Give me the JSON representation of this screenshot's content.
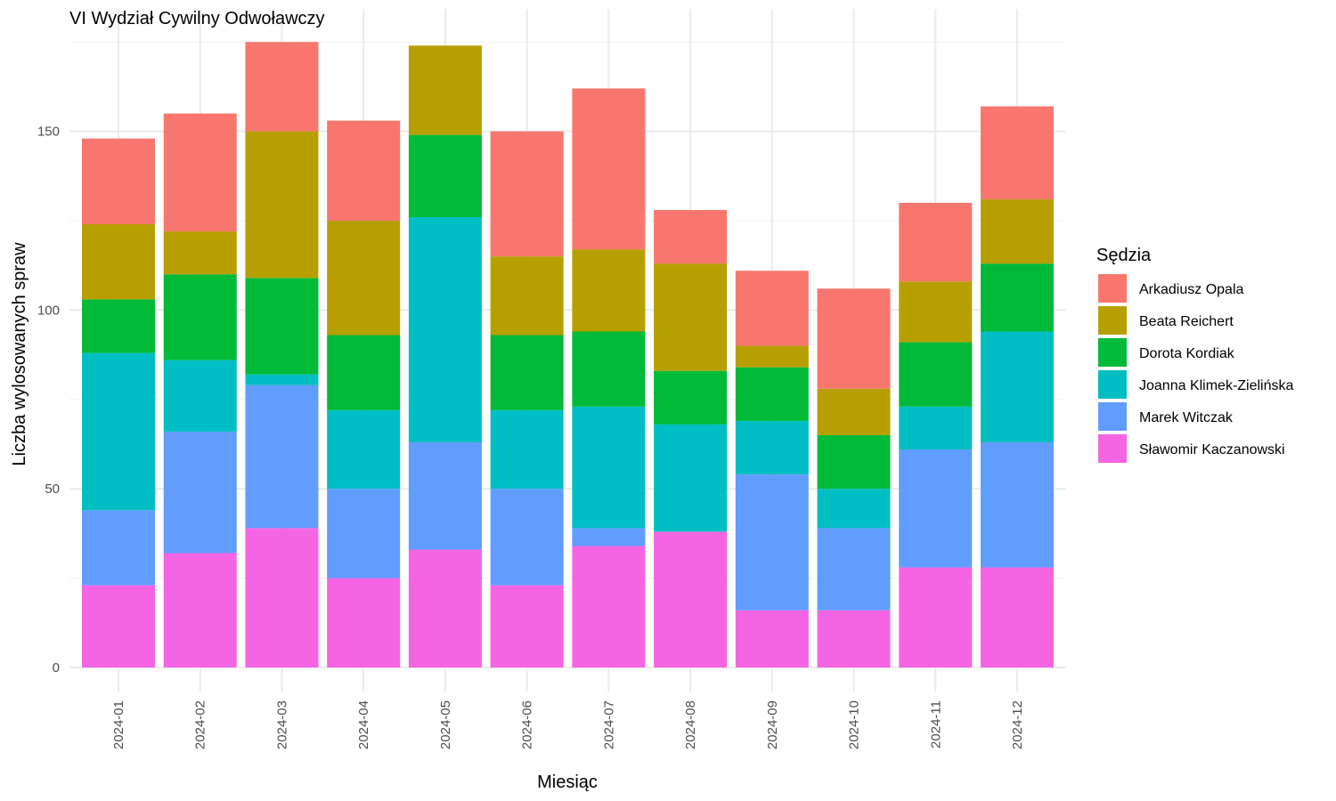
{
  "chart_data": {
    "type": "bar",
    "stacked": true,
    "title": "VI Wydział Cywilny Odwoławczy",
    "xlabel": "Miesiąc",
    "ylabel": "Liczba wylosowanych spraw",
    "ylim": [
      0,
      175
    ],
    "yticks": [
      0,
      50,
      100,
      150
    ],
    "grid": true,
    "legend_title": "Sędzia",
    "legend_position": "right",
    "categories": [
      "2024-01",
      "2024-02",
      "2024-03",
      "2024-04",
      "2024-05",
      "2024-06",
      "2024-07",
      "2024-08",
      "2024-09",
      "2024-10",
      "2024-11",
      "2024-12"
    ],
    "series": [
      {
        "name": "Sławomir Kaczanowski",
        "color": "#F564E3",
        "values": [
          23,
          32,
          39,
          25,
          33,
          23,
          34,
          38,
          16,
          16,
          28,
          28
        ]
      },
      {
        "name": "Marek Witczak",
        "color": "#619CFF",
        "values": [
          21,
          34,
          40,
          25,
          30,
          27,
          5,
          0,
          38,
          23,
          33,
          35
        ]
      },
      {
        "name": "Joanna Klimek-Zielińska",
        "color": "#00BFC4",
        "values": [
          44,
          20,
          3,
          22,
          63,
          22,
          34,
          30,
          15,
          11,
          12,
          31
        ]
      },
      {
        "name": "Dorota Kordiak",
        "color": "#00BA38",
        "values": [
          15,
          24,
          27,
          21,
          23,
          21,
          21,
          15,
          15,
          15,
          18,
          19
        ]
      },
      {
        "name": "Beata Reichert",
        "color": "#B79F00",
        "values": [
          21,
          12,
          41,
          32,
          25,
          22,
          23,
          30,
          6,
          13,
          17,
          18
        ]
      },
      {
        "name": "Arkadiusz Opala",
        "color": "#F8766D",
        "values": [
          24,
          33,
          25,
          28,
          0,
          35,
          45,
          15,
          21,
          28,
          22,
          26
        ]
      }
    ],
    "legend_order": [
      "Arkadiusz Opala",
      "Beata Reichert",
      "Dorota Kordiak",
      "Joanna Klimek-Zielińska",
      "Marek Witczak",
      "Sławomir Kaczanowski"
    ]
  }
}
